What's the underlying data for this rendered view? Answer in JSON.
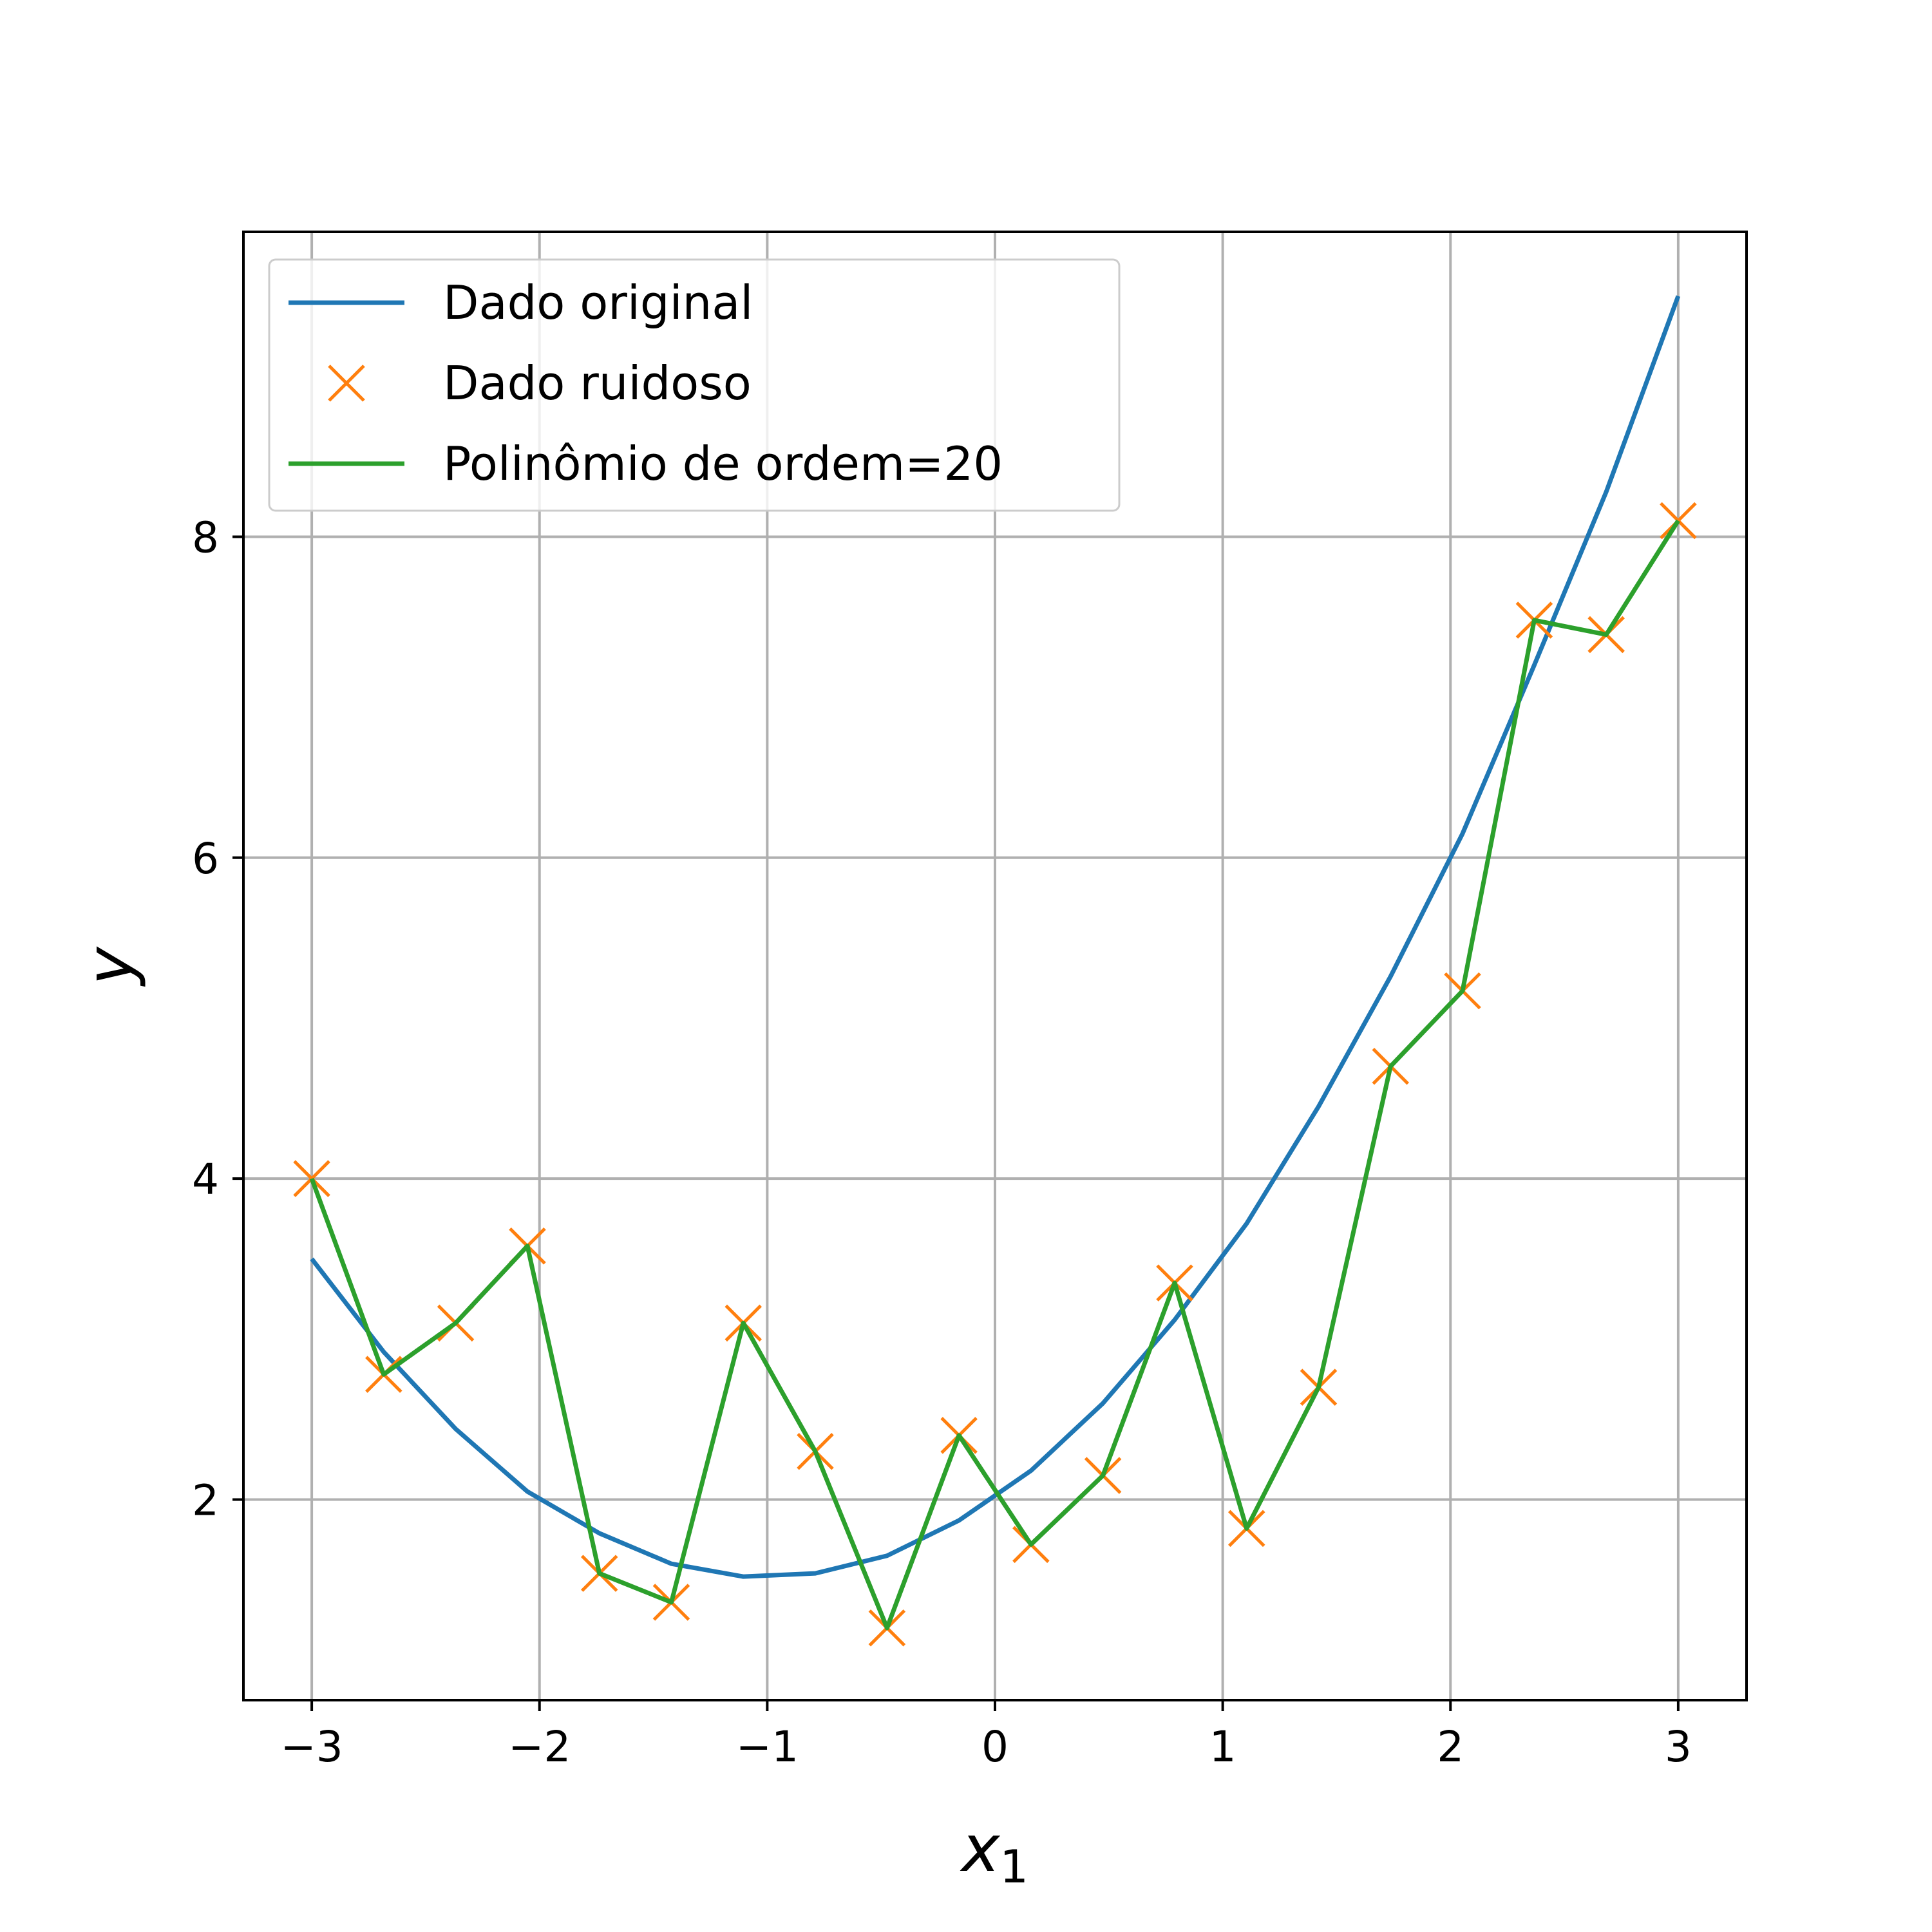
{
  "colors": {
    "original": "#1f77b4",
    "noisy": "#ff7f0e",
    "fit": "#2ca02c",
    "grid": "#b0b0b0",
    "axes": "#000000"
  },
  "chart_data": {
    "type": "line",
    "title": "",
    "xlabel": "x",
    "xlabel_subscript": "1",
    "ylabel": "y",
    "xlim": [
      -3.3,
      3.3
    ],
    "ylim": [
      0.75,
      9.9
    ],
    "grid": true,
    "legend_position": "top-left",
    "xticks": [
      {
        "value": -3,
        "label": "−3"
      },
      {
        "value": -2,
        "label": "−2"
      },
      {
        "value": -1,
        "label": "−1"
      },
      {
        "value": 0,
        "label": "0"
      },
      {
        "value": 1,
        "label": "1"
      },
      {
        "value": 2,
        "label": "2"
      },
      {
        "value": 3,
        "label": "3"
      }
    ],
    "yticks": [
      {
        "value": 2,
        "label": "2"
      },
      {
        "value": 4,
        "label": "4"
      },
      {
        "value": 6,
        "label": "6"
      },
      {
        "value": 8,
        "label": "8"
      }
    ],
    "x": [
      -3.0,
      -2.684,
      -2.368,
      -2.053,
      -1.737,
      -1.421,
      -1.105,
      -0.789,
      -0.474,
      -0.158,
      0.158,
      0.474,
      0.789,
      1.105,
      1.421,
      1.737,
      2.053,
      2.368,
      2.684,
      3.0
    ],
    "series": [
      {
        "name": "Dado original",
        "style": "line",
        "values": [
          3.5,
          2.92,
          2.44,
          2.05,
          1.79,
          1.6,
          1.52,
          1.54,
          1.65,
          1.87,
          2.18,
          2.6,
          3.12,
          3.72,
          4.45,
          5.26,
          6.15,
          7.2,
          8.28,
          9.5
        ]
      },
      {
        "name": "Dado ruidoso",
        "style": "marker-x",
        "values": [
          4.0,
          2.78,
          3.1,
          3.58,
          1.54,
          1.36,
          3.1,
          2.3,
          1.2,
          2.4,
          1.72,
          2.15,
          3.35,
          1.82,
          2.7,
          4.7,
          5.17,
          7.48,
          7.39,
          8.1
        ]
      },
      {
        "name": "Polinômio de ordem=20",
        "style": "line",
        "values": [
          4.0,
          2.78,
          3.1,
          3.58,
          1.54,
          1.36,
          3.1,
          2.3,
          1.2,
          2.4,
          1.72,
          2.15,
          3.35,
          1.82,
          2.7,
          4.7,
          5.17,
          7.48,
          7.39,
          8.1
        ]
      }
    ]
  }
}
